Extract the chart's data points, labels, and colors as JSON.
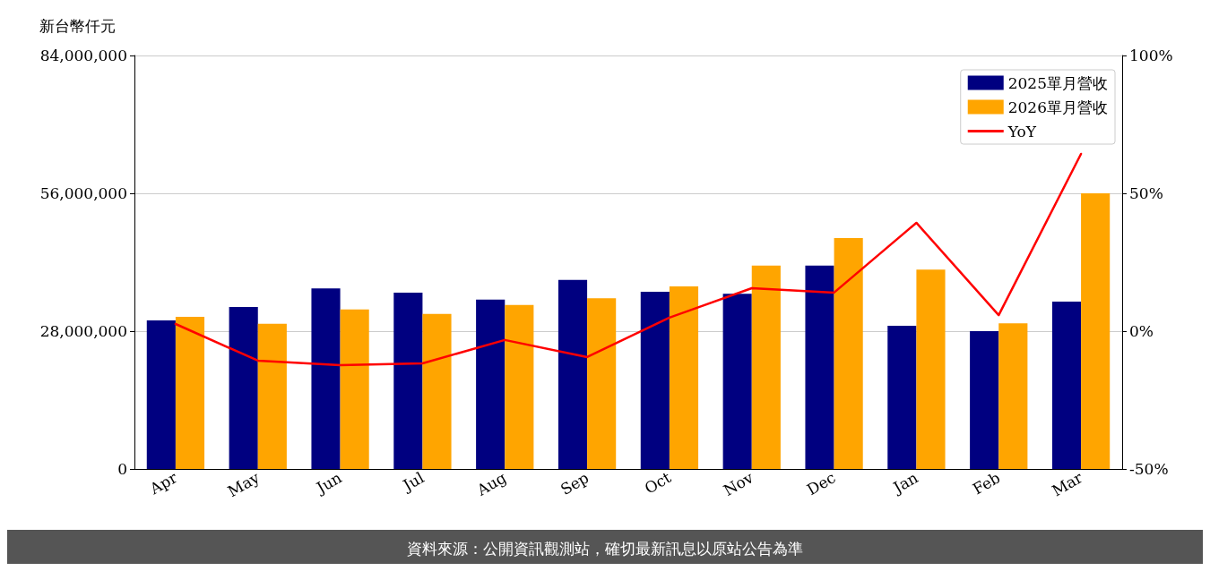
{
  "chart_data": {
    "type": "bar",
    "ylabel": "新台幣仟元",
    "categories": [
      "Apr",
      "May",
      "Jun",
      "Jul",
      "Aug",
      "Sep",
      "Oct",
      "Nov",
      "Dec",
      "Jan",
      "Feb",
      "Mar"
    ],
    "series": [
      {
        "name": "2025單月營收",
        "color": "#000080",
        "values": [
          30200000,
          32900000,
          36700000,
          35800000,
          34400000,
          38400000,
          36000000,
          35600000,
          41300000,
          29100000,
          28000000,
          34000000
        ]
      },
      {
        "name": "2026單月營收",
        "color": "#ffa500",
        "values": [
          30900000,
          29500000,
          32400000,
          31500000,
          33300000,
          34700000,
          37100000,
          41300000,
          46900000,
          40500000,
          29600000,
          56000000
        ]
      },
      {
        "name": "YoY",
        "type": "line",
        "axis": "y2",
        "color": "#ff0000",
        "values": [
          2.6,
          -10.7,
          -12.3,
          -11.7,
          -3.2,
          -9.4,
          4.9,
          15.6,
          14.0,
          39.3,
          5.8,
          64.3
        ]
      }
    ],
    "ylim": [
      0,
      84000000
    ],
    "yticks": [
      0,
      {
        "value": 28000000,
        "label": "28,000,000"
      },
      {
        "value": 56000000,
        "label": "56,000,000"
      },
      {
        "value": 84000000,
        "label": "84,000,000"
      }
    ],
    "y2lim": [
      -50,
      100
    ],
    "y2ticks": [
      {
        "value": -50,
        "label": "-50%"
      },
      {
        "value": 0,
        "label": "0%"
      },
      {
        "value": 50,
        "label": "50%"
      },
      {
        "value": 100,
        "label": "100%"
      }
    ],
    "grid": "y",
    "legend": "top right",
    "marker": "none",
    "line_style": "solid",
    "annotations": [
      "資料來源：公開資訊觀測站，確切最新訊息以原站公告為準"
    ]
  }
}
